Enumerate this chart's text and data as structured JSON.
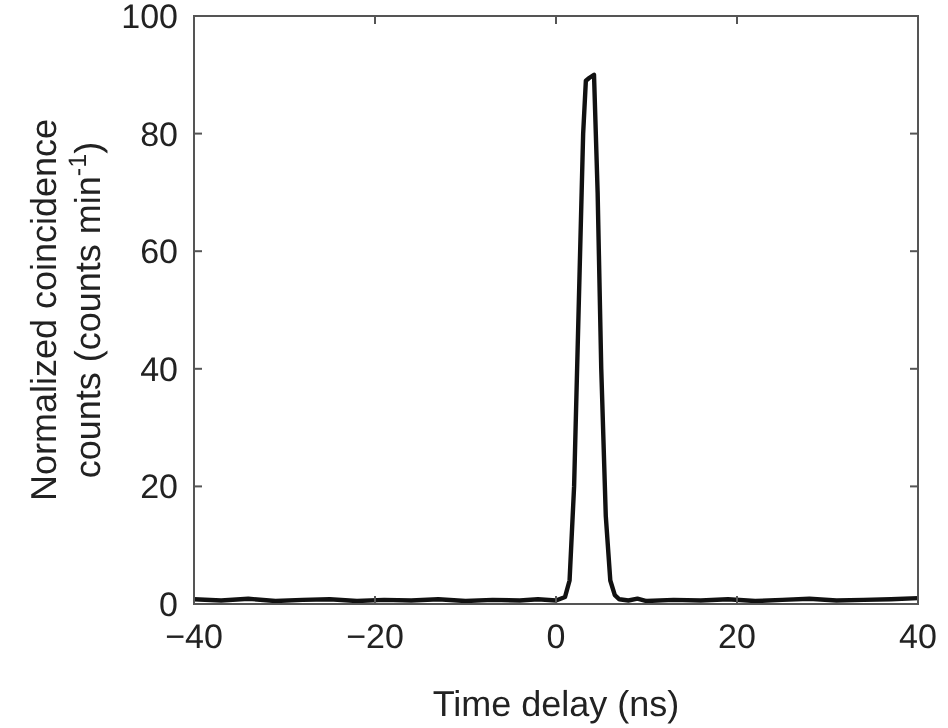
{
  "chart_data": {
    "type": "line",
    "xlabel": "Time delay (ns)",
    "ylabel": "Normalized coincidence\ncounts (counts min$^{-1}$)",
    "xlim": [
      -40,
      40
    ],
    "ylim": [
      0,
      100
    ],
    "xticks": [
      {
        "value": -40,
        "label": "−40"
      },
      {
        "value": -20,
        "label": "−20"
      },
      0,
      20,
      40
    ],
    "yticks": [
      0,
      20,
      40,
      60,
      80,
      100
    ],
    "grid": false,
    "line_style": "solid",
    "series": [
      {
        "color": "#111111",
        "x": [
          -40,
          -37,
          -34,
          -31,
          -28,
          -25,
          -22,
          -19,
          -16,
          -13,
          -10,
          -7,
          -4,
          -2,
          0,
          1,
          1.5,
          2,
          2.5,
          3,
          3.3,
          3.7,
          4.2,
          4.6,
          5,
          5.5,
          6,
          6.5,
          7,
          8,
          9,
          10,
          13,
          16,
          19,
          22,
          25,
          28,
          31,
          34,
          37,
          40
        ],
        "values": [
          0.8,
          0.6,
          0.9,
          0.5,
          0.7,
          0.8,
          0.5,
          0.7,
          0.6,
          0.8,
          0.5,
          0.7,
          0.6,
          0.8,
          0.6,
          1.2,
          4,
          20,
          50,
          80,
          89,
          89.5,
          90,
          70,
          40,
          15,
          4,
          1.5,
          0.8,
          0.6,
          0.9,
          0.5,
          0.7,
          0.6,
          0.8,
          0.5,
          0.7,
          0.9,
          0.6,
          0.7,
          0.8,
          1.0
        ]
      }
    ]
  }
}
